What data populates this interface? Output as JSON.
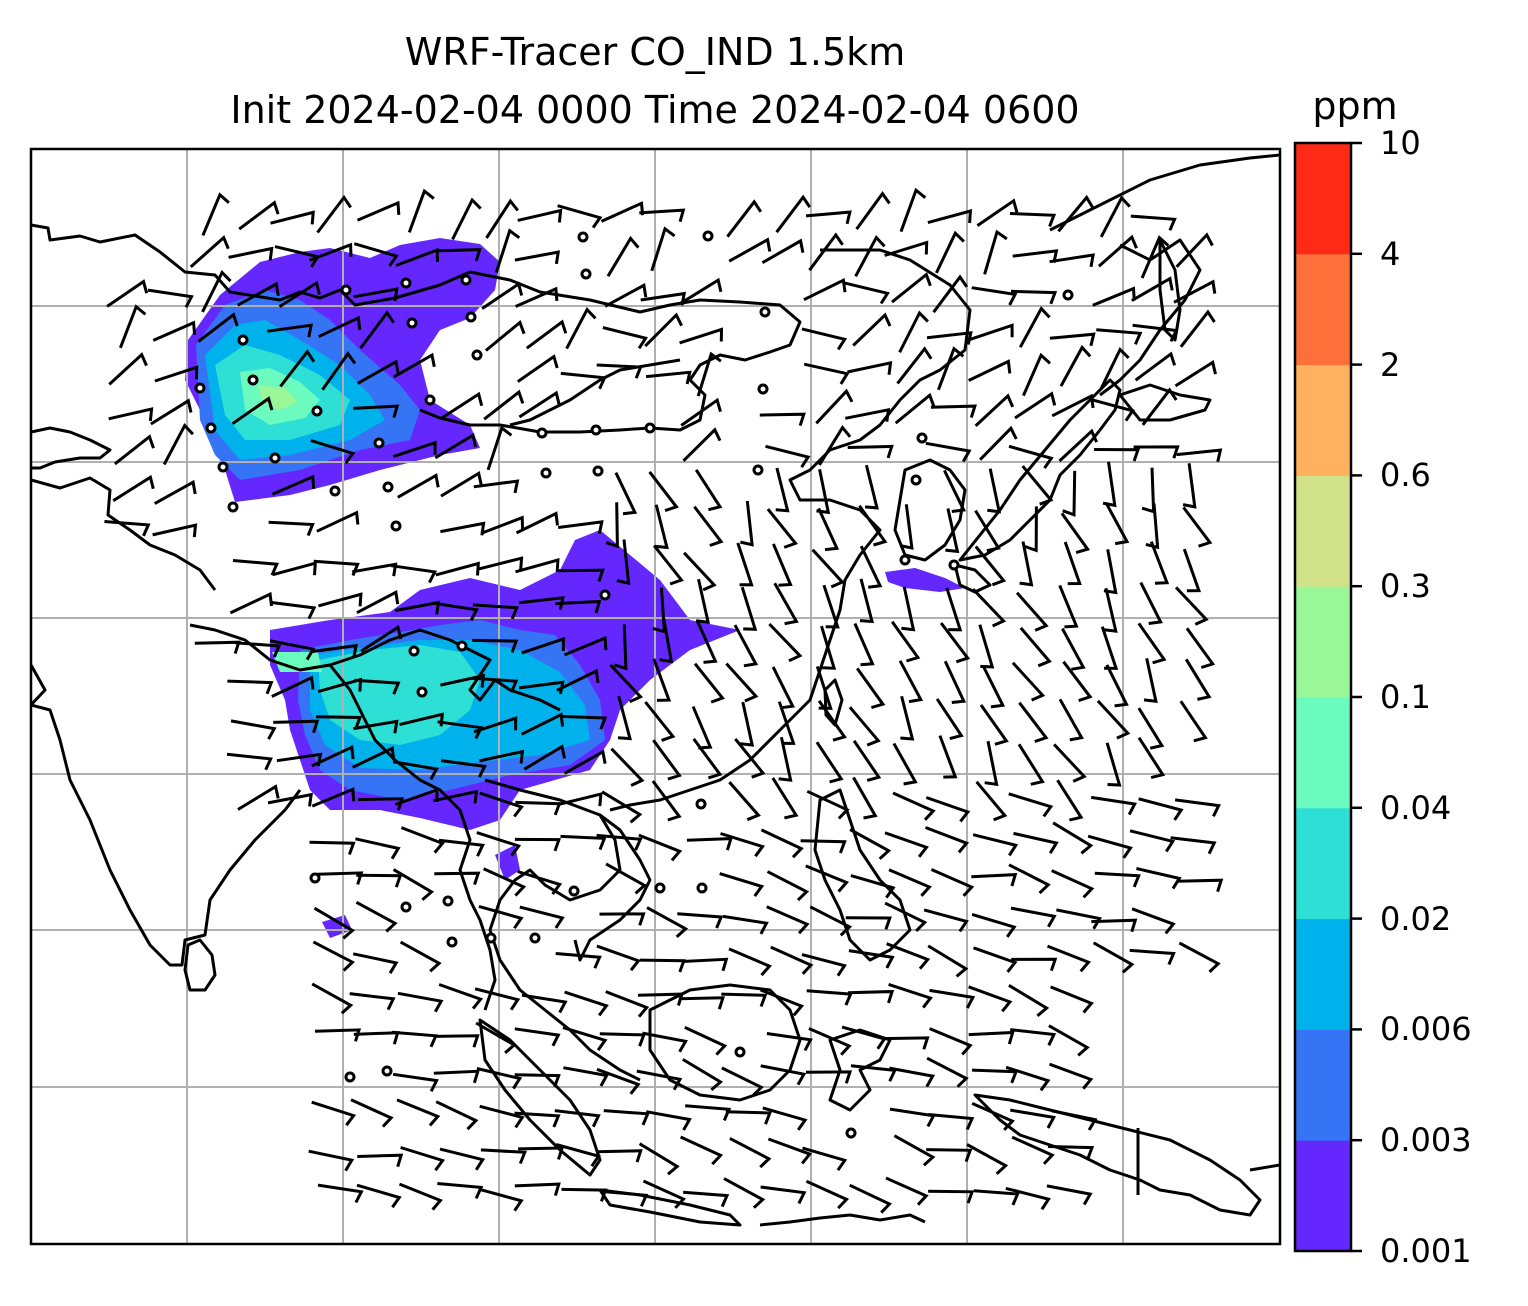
{
  "title": {
    "line1": "WRF-Tracer CO_IND 1.5km",
    "line2": "Init 2024-02-04 0000 Time 2024-02-04 0600"
  },
  "colorbar": {
    "unit": "ppm",
    "levels": [
      "0.001",
      "0.003",
      "0.006",
      "0.02",
      "0.04",
      "0.1",
      "0.3",
      "0.6",
      "2",
      "4",
      "10"
    ],
    "colors": [
      "#6428ff",
      "#3574f5",
      "#00b2ec",
      "#2edfd6",
      "#6cfbbe",
      "#99f797",
      "#d0e188",
      "#ffb15f",
      "#ff6f3a",
      "#ff2a15"
    ]
  },
  "map": {
    "field": "CO_IND tracer concentration",
    "barb_color": "#000000",
    "gridline_color": "#b0b0b0",
    "plume_colors_present": [
      "#6428ff",
      "#3574f5",
      "#00b2ec",
      "#2edfd6",
      "#6cfbbe",
      "#99f797"
    ]
  }
}
